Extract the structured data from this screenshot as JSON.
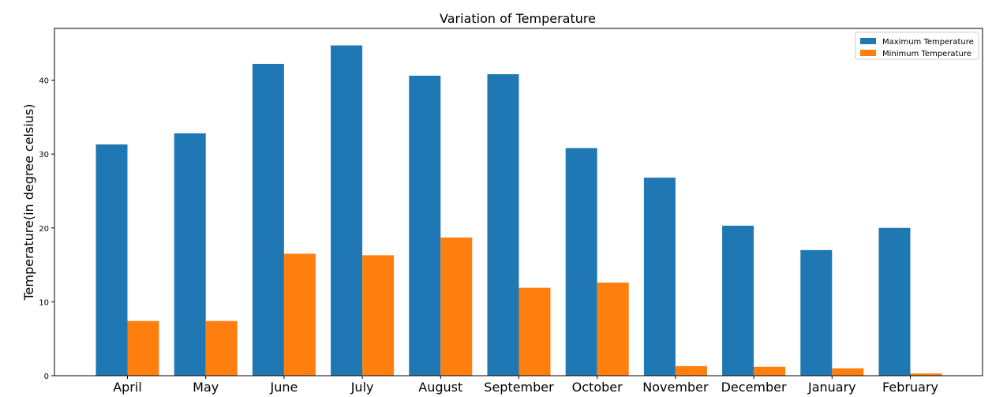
{
  "chart_data": {
    "type": "bar",
    "title": "Variation of Temperature",
    "xlabel": "",
    "ylabel": "Temperature(in degree celsius)",
    "categories": [
      "April",
      "May",
      "June",
      "July",
      "August",
      "September",
      "October",
      "November",
      "December",
      "January",
      "February"
    ],
    "series": [
      {
        "name": "Maximum Temperature",
        "color": "#1f77b4",
        "values": [
          31.3,
          32.8,
          42.2,
          44.7,
          40.6,
          40.8,
          30.8,
          26.8,
          20.3,
          17.0,
          20.0
        ]
      },
      {
        "name": "Minimum Temperature",
        "color": "#ff7f0e",
        "values": [
          7.4,
          7.4,
          16.5,
          16.3,
          18.7,
          11.9,
          12.6,
          1.3,
          1.2,
          1.0,
          0.3
        ]
      }
    ],
    "ylim": [
      0,
      47
    ],
    "yticks": [
      0,
      10,
      20,
      30,
      40
    ],
    "grid": false,
    "legend_position": "top-right"
  }
}
